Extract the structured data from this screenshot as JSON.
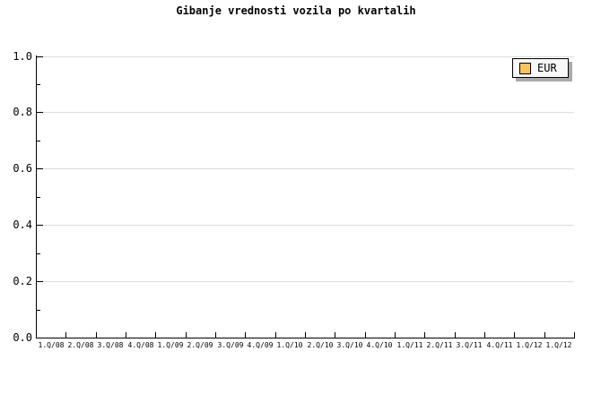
{
  "title": "Gibanje vrednosti vozila po kvartalih",
  "legend": {
    "label": "EUR",
    "position": "top-right"
  },
  "colors": {
    "background": "#ffffff",
    "grid": "#dcdcdc",
    "axis": "#000000",
    "text": "#000000",
    "legend_bg": "#f8f8f8",
    "legend_border": "#000000",
    "legend_shadow": "#a9a9a9",
    "swatch": "#f9c360",
    "swatch_border": "#000000"
  },
  "chart_data": {
    "type": "line",
    "title": "Gibanje vrednosti vozila po kvartalih",
    "categories": [
      "1.Q/08",
      "2.Q/08",
      "3.Q/08",
      "4.Q/08",
      "1.Q/09",
      "2.Q/09",
      "3.Q/09",
      "4.Q/09",
      "1.Q/10",
      "2.Q/10",
      "3.Q/10",
      "4.Q/10",
      "1.Q/11",
      "2.Q/11",
      "3.Q/11",
      "4.Q/11",
      "1.Q/12",
      "1.Q/12"
    ],
    "series": [
      {
        "name": "EUR",
        "values": []
      }
    ],
    "xlabel": "",
    "ylabel": "",
    "ylim": [
      0.0,
      1.0
    ],
    "ytick_values": [
      1.0,
      0.8,
      0.6,
      0.4,
      0.2,
      0.0
    ],
    "ytick_labels": [
      "1.0",
      "0.8",
      "0.6",
      "0.4",
      "0.2",
      "0.0"
    ],
    "yminor_values": [
      0.9,
      0.7,
      0.5,
      0.3,
      0.1
    ],
    "grid": true,
    "legend_position": "top-right"
  }
}
